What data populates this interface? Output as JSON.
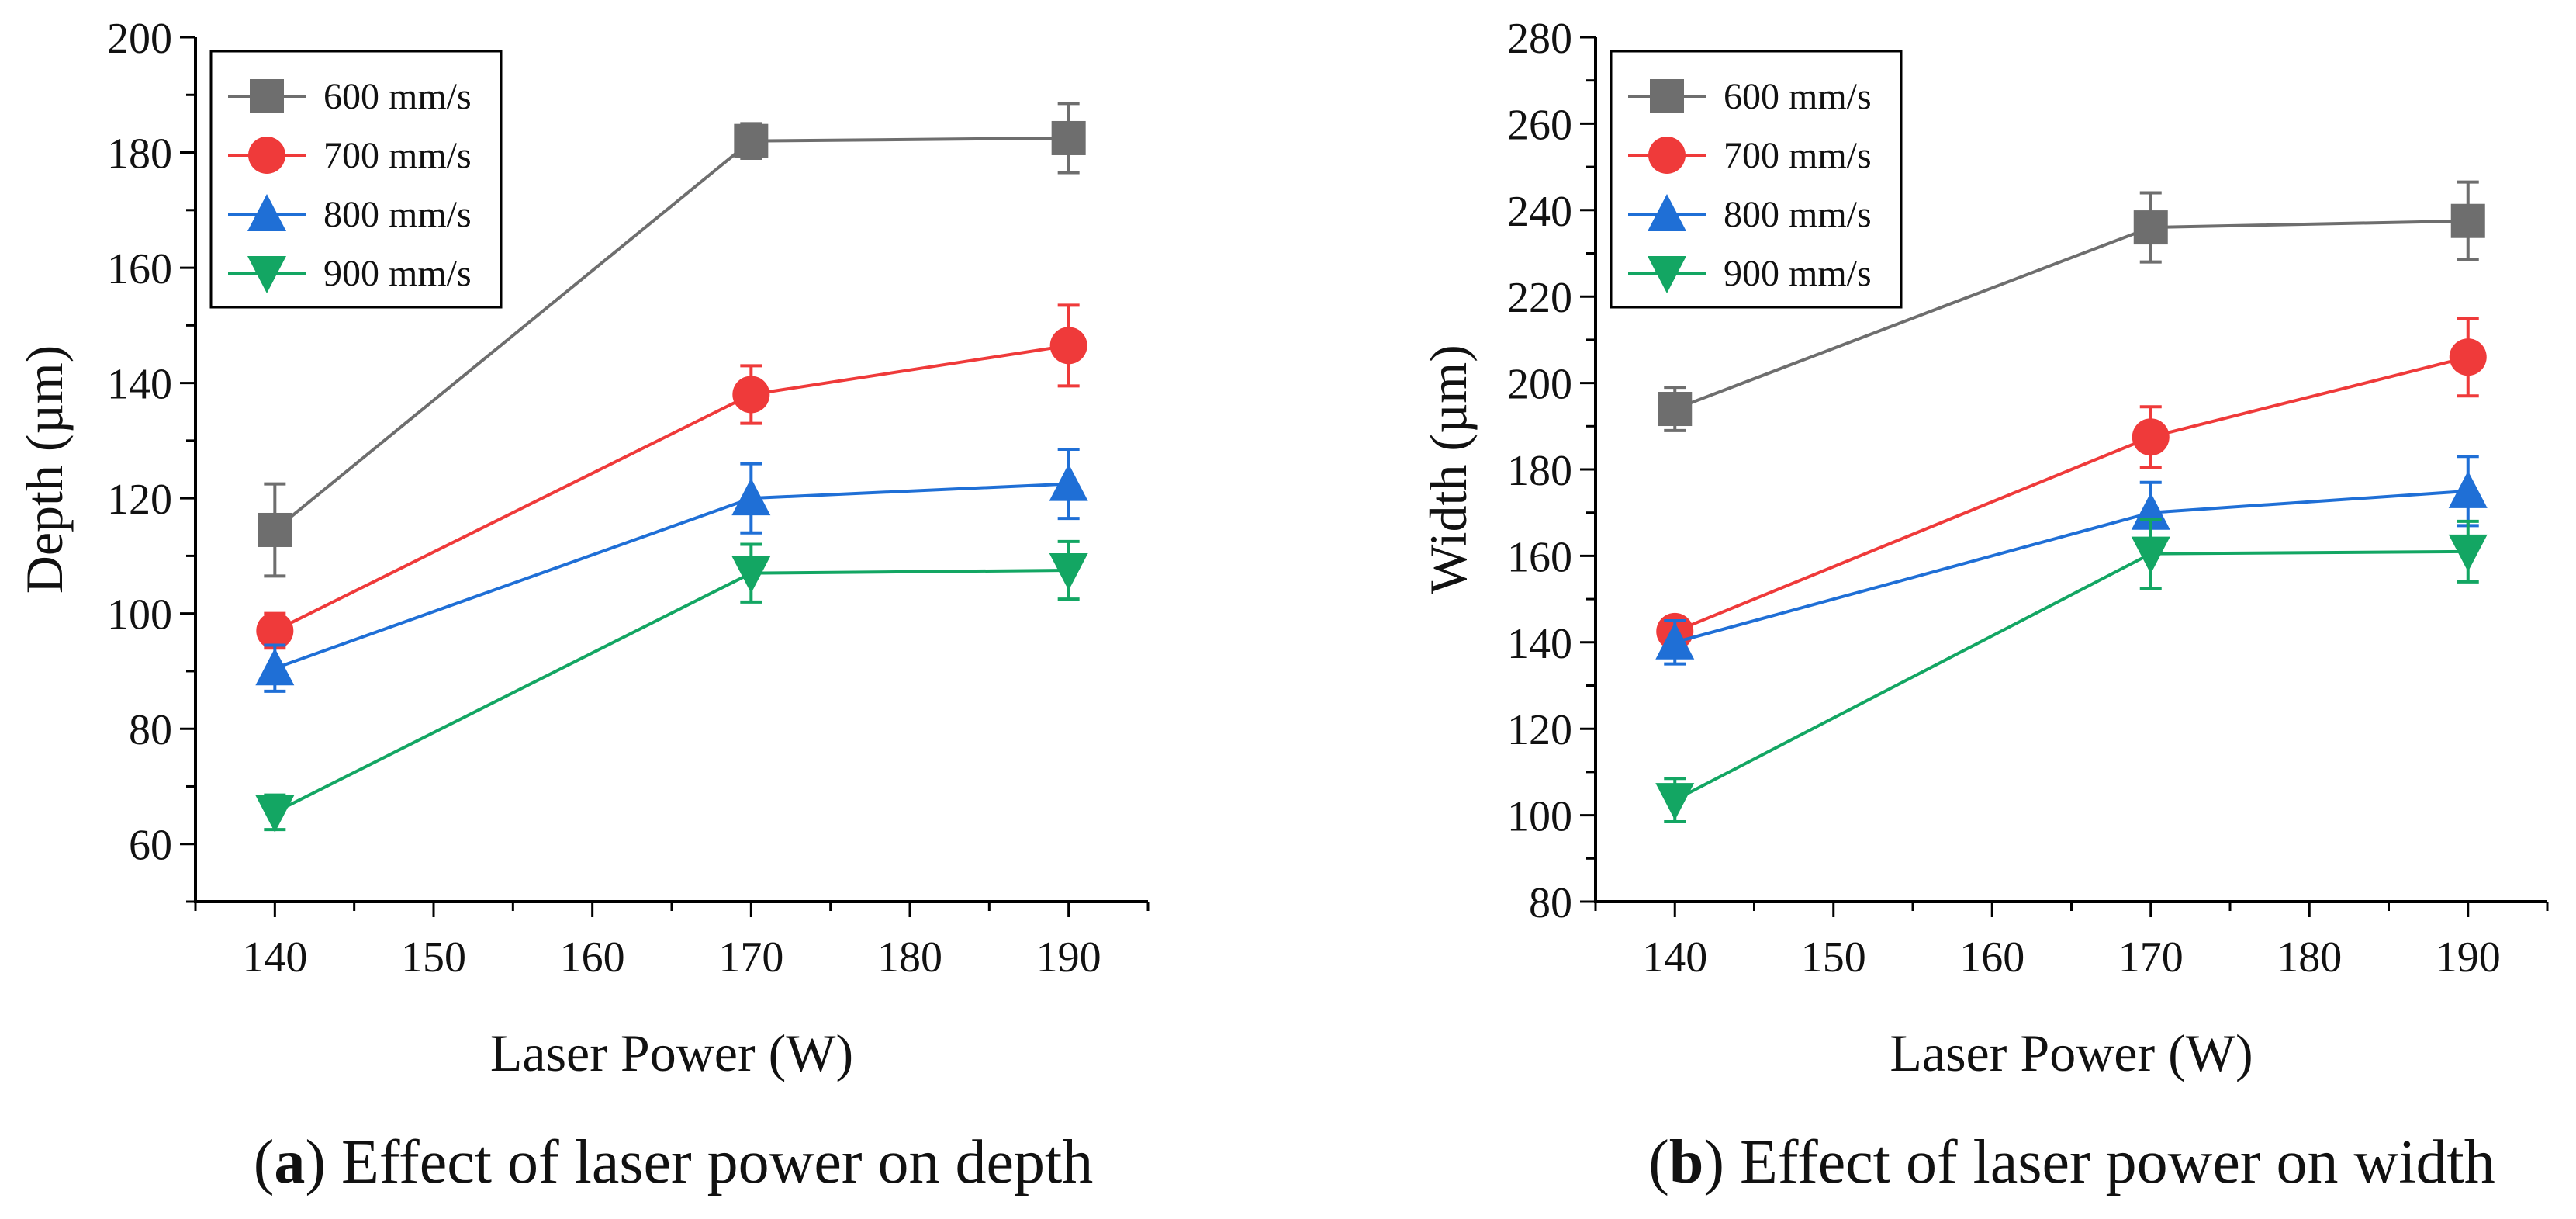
{
  "chart_data": [
    {
      "type": "line",
      "panel": "a",
      "caption_letter": "a",
      "caption_text": "Effect of laser power on depth",
      "xlabel": "Laser Power (W)",
      "ylabel": "Depth (µm)",
      "xlim": [
        135,
        195
      ],
      "ylim": [
        50,
        200
      ],
      "xticks": [
        140,
        150,
        160,
        170,
        180,
        190
      ],
      "yticks": [
        60,
        80,
        100,
        120,
        140,
        160,
        180,
        200
      ],
      "x": [
        140,
        170,
        190
      ],
      "legend_position": "top-left",
      "series": [
        {
          "name": "600 mm/s",
          "color": "#6e6e6e",
          "marker": "square",
          "values": [
            114.5,
            182,
            182.5
          ],
          "errors": [
            8,
            3,
            6
          ]
        },
        {
          "name": "700 mm/s",
          "color": "#ef3a3a",
          "marker": "circle",
          "values": [
            97,
            138,
            146.5
          ],
          "errors": [
            3,
            5,
            7
          ]
        },
        {
          "name": "800 mm/s",
          "color": "#1f6fd6",
          "marker": "triangle-up",
          "values": [
            90.5,
            120,
            122.5
          ],
          "errors": [
            4,
            6,
            6
          ]
        },
        {
          "name": "900 mm/s",
          "color": "#13a663",
          "marker": "triangle-down",
          "values": [
            65.5,
            107,
            107.5
          ],
          "errors": [
            3,
            5,
            5
          ]
        }
      ]
    },
    {
      "type": "line",
      "panel": "b",
      "caption_letter": "b",
      "caption_text": "Effect of laser power on width",
      "xlabel": "Laser Power (W)",
      "ylabel": "Width (µm)",
      "xlim": [
        135,
        195
      ],
      "ylim": [
        80,
        280
      ],
      "xticks": [
        140,
        150,
        160,
        170,
        180,
        190
      ],
      "yticks": [
        80,
        100,
        120,
        140,
        160,
        180,
        200,
        220,
        240,
        260,
        280
      ],
      "x": [
        140,
        170,
        190
      ],
      "legend_position": "top-left",
      "series": [
        {
          "name": "600 mm/s",
          "color": "#6e6e6e",
          "marker": "square",
          "values": [
            194,
            236,
            237.5
          ],
          "errors": [
            5,
            8,
            9
          ]
        },
        {
          "name": "700 mm/s",
          "color": "#ef3a3a",
          "marker": "circle",
          "values": [
            142.5,
            187.5,
            206
          ],
          "errors": [
            3,
            7,
            9
          ]
        },
        {
          "name": "800 mm/s",
          "color": "#1f6fd6",
          "marker": "triangle-up",
          "values": [
            140,
            170,
            175
          ],
          "errors": [
            5,
            7,
            8
          ]
        },
        {
          "name": "900 mm/s",
          "color": "#13a663",
          "marker": "triangle-down",
          "values": [
            103.5,
            160.5,
            161
          ],
          "errors": [
            5,
            8,
            7
          ]
        }
      ]
    }
  ]
}
